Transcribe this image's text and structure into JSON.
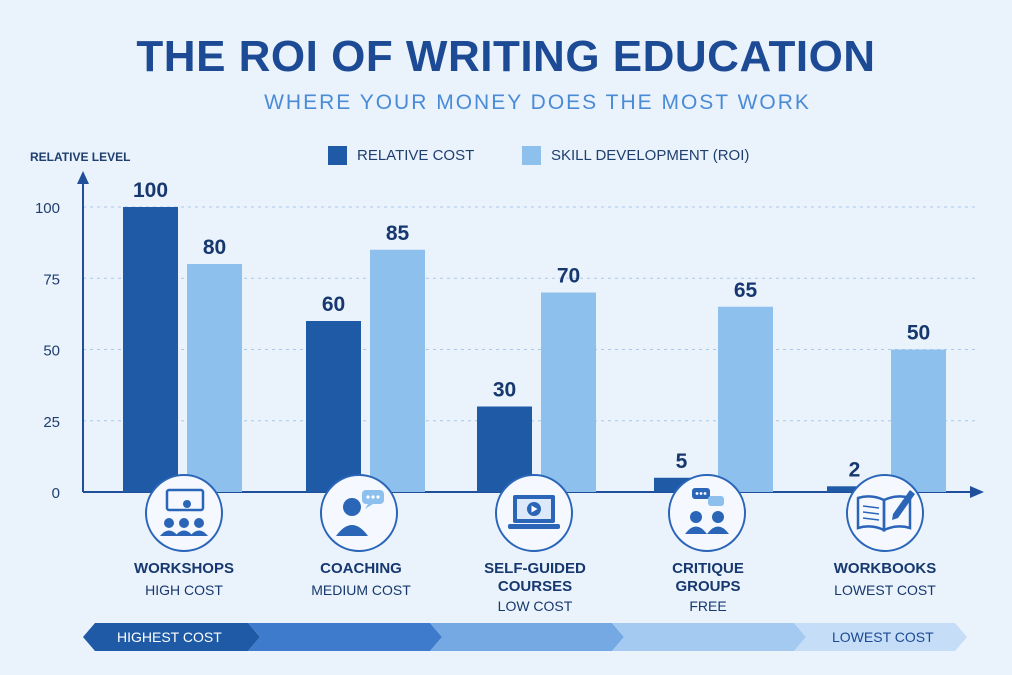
{
  "title": "THE ROI OF WRITING EDUCATION",
  "subtitle": "WHERE YOUR MONEY DOES THE MOST WORK",
  "colors": {
    "cost": "#1f5aa6",
    "roi": "#8ec0ee",
    "axis": "#1f4f9a",
    "grid": "#a9c8ec"
  },
  "chart_data": {
    "type": "bar",
    "ylabel": "RELATIVE LEVEL",
    "ylim": [
      0,
      100
    ],
    "yticks": [
      0,
      25,
      50,
      75,
      100
    ],
    "grid": true,
    "legend_position": "top",
    "categories": [
      "WORKSHOPS",
      "COACHING",
      "SELF-GUIDED COURSES",
      "CRITIQUE GROUPS",
      "WORKBOOKS"
    ],
    "category_lines": [
      [
        "WORKSHOPS"
      ],
      [
        "COACHING"
      ],
      [
        "SELF-GUIDED",
        "COURSES"
      ],
      [
        "CRITIQUE",
        "GROUPS"
      ],
      [
        "WORKBOOKS"
      ]
    ],
    "cost_labels": [
      "HIGH COST",
      "MEDIUM COST",
      "LOW COST",
      "FREE",
      "LOWEST COST"
    ],
    "icons": [
      "presenter-icon",
      "coaching-icon",
      "video-course-icon",
      "critique-group-icon",
      "workbook-icon"
    ],
    "series": [
      {
        "name": "RELATIVE COST",
        "values": [
          100,
          60,
          30,
          5,
          2
        ]
      },
      {
        "name": "SKILL DEVELOPMENT (ROI)",
        "values": [
          80,
          85,
          70,
          65,
          50
        ]
      }
    ]
  },
  "cost_scale": {
    "left_label": "HIGHEST COST",
    "right_label": "LOWEST COST"
  }
}
